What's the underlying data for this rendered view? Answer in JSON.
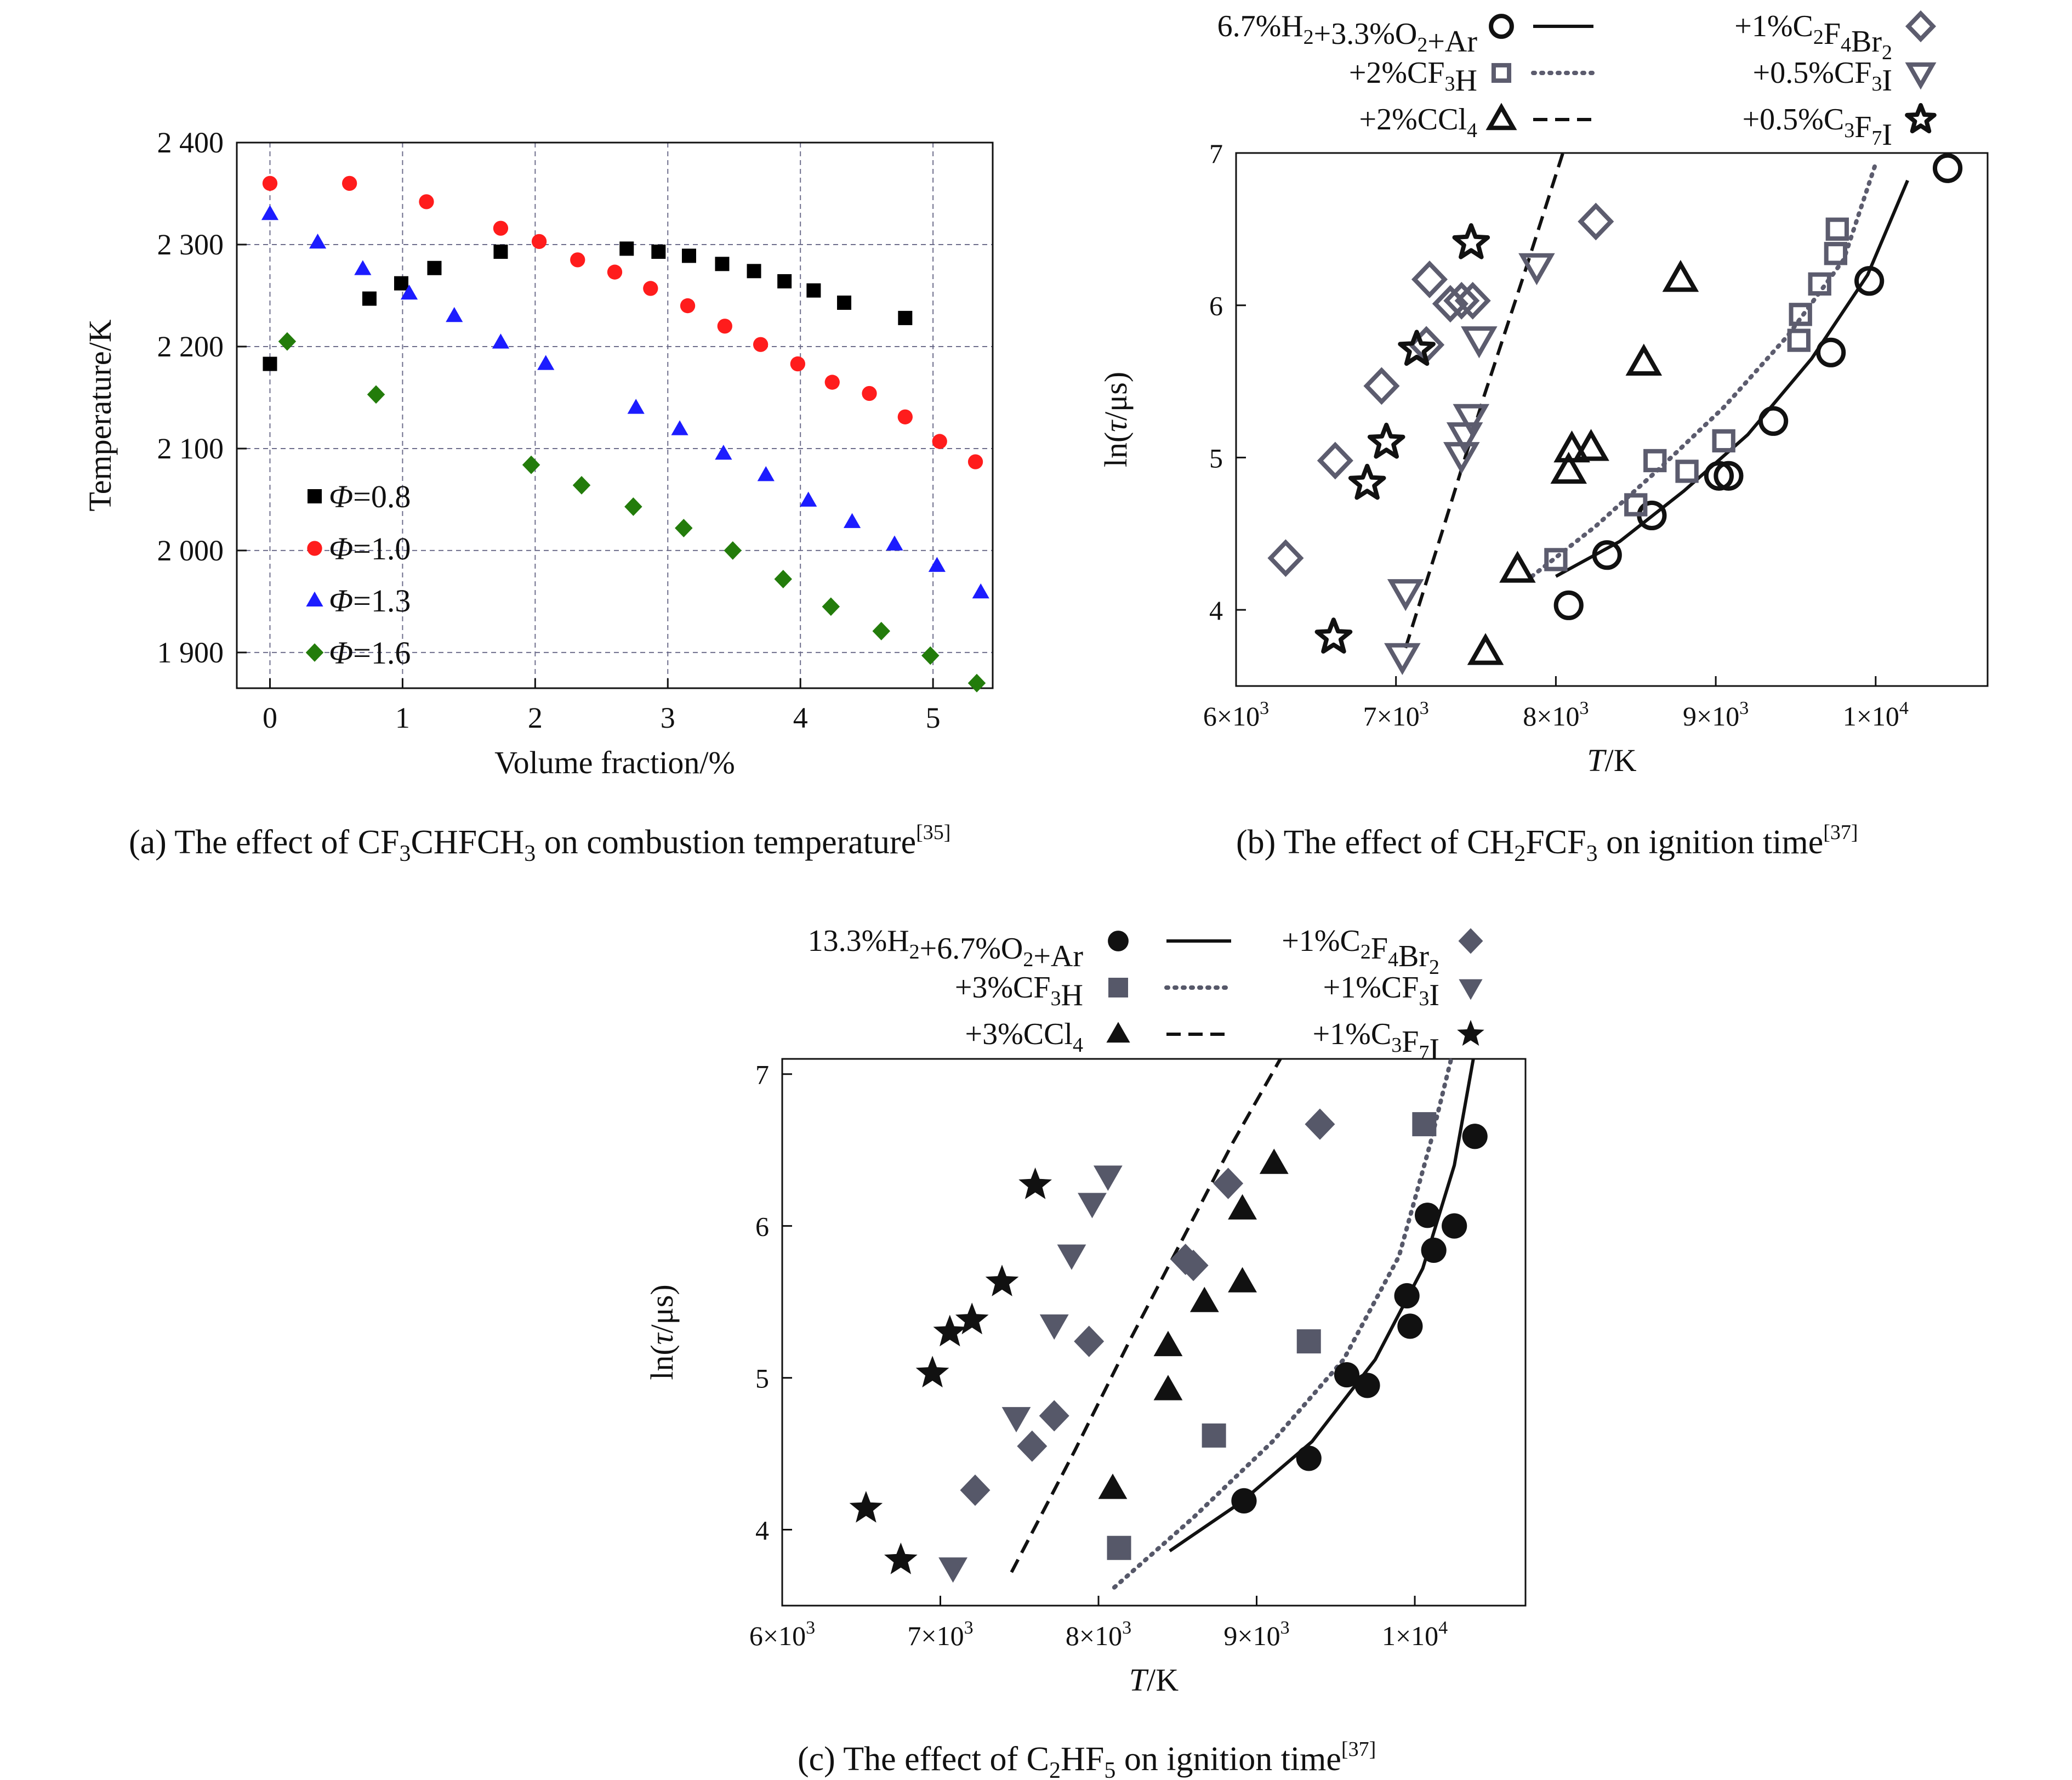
{
  "chart_data": [
    {
      "id": "a",
      "type": "scatter",
      "caption": "(a) The effect of CF₃CHFCH₃ on combustion temperature[35]",
      "xlabel": "Volume fraction/%",
      "ylabel": "Temperature/K",
      "xlim": [
        -0.25,
        5.45
      ],
      "ylim": [
        1865,
        2400
      ],
      "x_ticks": [
        {
          "v": 0,
          "label": "0"
        },
        {
          "v": 1,
          "label": "1"
        },
        {
          "v": 2,
          "label": "2"
        },
        {
          "v": 3,
          "label": "3"
        },
        {
          "v": 4,
          "label": "4"
        },
        {
          "v": 5,
          "label": "5"
        }
      ],
      "y_ticks": [
        {
          "v": 1900,
          "label": "1 900"
        },
        {
          "v": 2000,
          "label": "2 000"
        },
        {
          "v": 2100,
          "label": "2 100"
        },
        {
          "v": 2200,
          "label": "2 200"
        },
        {
          "v": 2300,
          "label": "2 300"
        },
        {
          "v": 2400,
          "label": "2 400"
        }
      ],
      "grid": true,
      "legend_position": "bottom-left",
      "series": [
        {
          "name": "Φ=0.8",
          "marker": "square",
          "color": "#000000",
          "points": [
            [
              0,
              2183
            ],
            [
              0.75,
              2247
            ],
            [
              0.99,
              2262
            ],
            [
              1.24,
              2277
            ],
            [
              1.74,
              2293
            ],
            [
              2.69,
              2296
            ],
            [
              2.93,
              2293
            ],
            [
              3.16,
              2289
            ],
            [
              3.41,
              2281
            ],
            [
              3.65,
              2274
            ],
            [
              3.88,
              2264
            ],
            [
              4.1,
              2255
            ],
            [
              4.33,
              2243
            ],
            [
              4.79,
              2228
            ]
          ]
        },
        {
          "name": "Φ=1.0",
          "marker": "circle",
          "color": "#ff1c1c",
          "points": [
            [
              0,
              2360
            ],
            [
              0.6,
              2360
            ],
            [
              1.18,
              2342
            ],
            [
              1.74,
              2316
            ],
            [
              2.03,
              2303
            ],
            [
              2.32,
              2285
            ],
            [
              2.6,
              2273
            ],
            [
              2.87,
              2257
            ],
            [
              3.15,
              2240
            ],
            [
              3.43,
              2220
            ],
            [
              3.7,
              2202
            ],
            [
              3.98,
              2183
            ],
            [
              4.24,
              2165
            ],
            [
              4.52,
              2154
            ],
            [
              4.79,
              2131
            ],
            [
              5.05,
              2107
            ],
            [
              5.32,
              2087
            ]
          ]
        },
        {
          "name": "Φ=1.3",
          "marker": "triangle",
          "color": "#1c1cff",
          "points": [
            [
              0,
              2330
            ],
            [
              0.36,
              2302
            ],
            [
              0.7,
              2276
            ],
            [
              1.05,
              2252
            ],
            [
              1.39,
              2230
            ],
            [
              1.74,
              2204
            ],
            [
              2.08,
              2183
            ],
            [
              2.76,
              2140
            ],
            [
              3.09,
              2119
            ],
            [
              3.42,
              2095
            ],
            [
              3.74,
              2074
            ],
            [
              4.06,
              2049
            ],
            [
              4.39,
              2028
            ],
            [
              4.71,
              2006
            ],
            [
              5.03,
              1985
            ],
            [
              5.36,
              1959
            ]
          ]
        },
        {
          "name": "Φ=1.6",
          "marker": "diamond",
          "color": "#237c0b",
          "points": [
            [
              0.13,
              2205
            ],
            [
              0.8,
              2153
            ],
            [
              1.97,
              2084
            ],
            [
              2.35,
              2064
            ],
            [
              2.74,
              2043
            ],
            [
              3.12,
              2022
            ],
            [
              3.49,
              2000
            ],
            [
              3.87,
              1972
            ],
            [
              4.23,
              1945
            ],
            [
              4.61,
              1921
            ],
            [
              4.98,
              1897
            ],
            [
              5.33,
              1870
            ]
          ]
        }
      ]
    },
    {
      "id": "b",
      "type": "scatter",
      "caption": "(b) The effect of CH₂FCF₃ on ignition time[37]",
      "xlabel": "T/K",
      "ylabel": "ln(τ/μs)",
      "xlim": [
        6000,
        10700
      ],
      "ylim": [
        3.5,
        7.0
      ],
      "x_ticks": [
        {
          "v": 6000,
          "label": "6×10³"
        },
        {
          "v": 7000,
          "label": "7×10³"
        },
        {
          "v": 8000,
          "label": "8×10³"
        },
        {
          "v": 9000,
          "label": "9×10³"
        },
        {
          "v": 10000,
          "label": "1×10⁴"
        }
      ],
      "y_ticks": [
        {
          "v": 4,
          "label": "4"
        },
        {
          "v": 5,
          "label": "5"
        },
        {
          "v": 6,
          "label": "6"
        },
        {
          "v": 7,
          "label": "7"
        }
      ],
      "grid": false,
      "legend_position": "above",
      "series": [
        {
          "name": "6.7%H₂+3.3%O₂+Ar",
          "marker": "circle",
          "fill": "none",
          "color": "#111111",
          "line": "solid",
          "points": [
            [
              8080,
              4.03
            ],
            [
              8320,
              4.36
            ],
            [
              8600,
              4.62
            ],
            [
              9020,
              4.88
            ],
            [
              9080,
              4.88
            ],
            [
              9360,
              5.24
            ],
            [
              9720,
              5.69
            ],
            [
              9960,
              6.16
            ],
            [
              10450,
              6.9
            ]
          ],
          "fit": [
            [
              8000,
              4.22
            ],
            [
              8400,
              4.45
            ],
            [
              8800,
              4.78
            ],
            [
              9200,
              5.15
            ],
            [
              9600,
              5.65
            ],
            [
              9950,
              6.2
            ],
            [
              10200,
              6.82
            ]
          ]
        },
        {
          "name": "+2%CF₃H",
          "marker": "square",
          "fill": "none",
          "color": "#5c5c6e",
          "line": "dotted",
          "points": [
            [
              8000,
              4.33
            ],
            [
              8500,
              4.69
            ],
            [
              8620,
              4.98
            ],
            [
              8820,
              4.91
            ],
            [
              9050,
              5.11
            ],
            [
              9520,
              5.77
            ],
            [
              9530,
              5.94
            ],
            [
              9650,
              6.14
            ],
            [
              9750,
              6.34
            ],
            [
              9760,
              6.5
            ]
          ],
          "fit": [
            [
              7850,
              4.22
            ],
            [
              8250,
              4.55
            ],
            [
              8650,
              4.93
            ],
            [
              9050,
              5.33
            ],
            [
              9450,
              5.8
            ],
            [
              9800,
              6.3
            ],
            [
              10000,
              6.93
            ]
          ]
        },
        {
          "name": "+2%CCl₄",
          "marker": "triangle",
          "fill": "none",
          "color": "#111111",
          "line": "dashed",
          "points": [
            [
              7560,
              3.72
            ],
            [
              7760,
              4.26
            ],
            [
              8080,
              4.91
            ],
            [
              8100,
              5.05
            ],
            [
              8220,
              5.06
            ],
            [
              8550,
              5.62
            ],
            [
              8780,
              6.17
            ]
          ],
          "fit": [
            [
              7060,
              3.75
            ],
            [
              7300,
              4.55
            ],
            [
              7550,
              5.4
            ],
            [
              7800,
              6.2
            ],
            [
              8050,
              7.02
            ]
          ]
        },
        {
          "name": "+1%C₂F₄Br₂",
          "marker": "diamond",
          "fill": "none",
          "color": "#5c5c6e",
          "line": "",
          "points": [
            [
              6310,
              4.34
            ],
            [
              6620,
              4.98
            ],
            [
              6910,
              5.47
            ],
            [
              7190,
              5.74
            ],
            [
              7210,
              6.17
            ],
            [
              7340,
              6.01
            ],
            [
              7410,
              6.03
            ],
            [
              7480,
              6.03
            ],
            [
              8250,
              6.55
            ]
          ]
        },
        {
          "name": "+0.5%CF₃I",
          "marker": "triangle-down",
          "fill": "none",
          "color": "#5c5c6e",
          "line": "",
          "points": [
            [
              7040,
              3.7
            ],
            [
              7060,
              4.12
            ],
            [
              7410,
              5.02
            ],
            [
              7430,
              5.15
            ],
            [
              7470,
              5.27
            ],
            [
              7520,
              5.78
            ],
            [
              7880,
              6.26
            ]
          ]
        },
        {
          "name": "+0.5%C₃F₇I",
          "marker": "star",
          "fill": "none",
          "color": "#111111",
          "line": "",
          "points": [
            [
              6610,
              3.82
            ],
            [
              6820,
              4.83
            ],
            [
              6940,
              5.1
            ],
            [
              7130,
              5.71
            ],
            [
              7470,
              6.41
            ]
          ]
        }
      ]
    },
    {
      "id": "c",
      "type": "scatter",
      "caption": "(c) The effect of C₂HF₅ on ignition time[37]",
      "xlabel": "T/K",
      "ylabel": "ln(τ/μs)",
      "xlim": [
        6000,
        10700
      ],
      "ylim": [
        3.5,
        7.1
      ],
      "x_ticks": [
        {
          "v": 6000,
          "label": "6×10³"
        },
        {
          "v": 7000,
          "label": "7×10³"
        },
        {
          "v": 8000,
          "label": "8×10³"
        },
        {
          "v": 9000,
          "label": "9×10³"
        },
        {
          "v": 10000,
          "label": "1×10⁴"
        }
      ],
      "y_ticks": [
        {
          "v": 4,
          "label": "4"
        },
        {
          "v": 5,
          "label": "5"
        },
        {
          "v": 6,
          "label": "6"
        },
        {
          "v": 7,
          "label": "7"
        }
      ],
      "grid": false,
      "legend_position": "above",
      "series": [
        {
          "name": "13.3%H₂+6.7%O₂+Ar",
          "marker": "circle",
          "fill": "solid",
          "color": "#111111",
          "line": "solid",
          "points": [
            [
              8920,
              4.19
            ],
            [
              9330,
              4.47
            ],
            [
              9570,
              5.02
            ],
            [
              9700,
              4.95
            ],
            [
              9950,
              5.54
            ],
            [
              9970,
              5.34
            ],
            [
              10080,
              6.07
            ],
            [
              10120,
              5.84
            ],
            [
              10250,
              6.0
            ],
            [
              10380,
              6.59
            ]
          ],
          "fit": [
            [
              8450,
              3.86
            ],
            [
              8900,
              4.18
            ],
            [
              9350,
              4.58
            ],
            [
              9750,
              5.12
            ],
            [
              10050,
              5.72
            ],
            [
              10250,
              6.4
            ],
            [
              10370,
              7.1
            ]
          ]
        },
        {
          "name": "+3%CF₃H",
          "marker": "square",
          "fill": "solid",
          "color": "#565869",
          "line": "dotted",
          "points": [
            [
              8130,
              3.88
            ],
            [
              8730,
              4.62
            ],
            [
              9330,
              5.24
            ],
            [
              10060,
              6.67
            ]
          ],
          "fit": [
            [
              8100,
              3.62
            ],
            [
              8600,
              4.08
            ],
            [
              9100,
              4.58
            ],
            [
              9550,
              5.12
            ],
            [
              9900,
              5.8
            ],
            [
              10100,
              6.55
            ],
            [
              10230,
              7.1
            ]
          ]
        },
        {
          "name": "+3%CCl₄",
          "marker": "triangle",
          "fill": "solid",
          "color": "#111111",
          "line": "dashed",
          "points": [
            [
              8090,
              4.27
            ],
            [
              8440,
              4.92
            ],
            [
              8440,
              5.21
            ],
            [
              8670,
              5.5
            ],
            [
              8910,
              5.63
            ],
            [
              8910,
              6.11
            ],
            [
              9110,
              6.41
            ]
          ],
          "fit": [
            [
              7450,
              3.72
            ],
            [
              7850,
              4.52
            ],
            [
              8200,
              5.25
            ],
            [
              8550,
              5.95
            ],
            [
              8850,
              6.55
            ],
            [
              9150,
              7.1
            ]
          ]
        },
        {
          "name": "+1%C₂F₄Br₂",
          "marker": "diamond",
          "fill": "solid",
          "color": "#565869",
          "line": "",
          "points": [
            [
              7220,
              4.26
            ],
            [
              7580,
              4.55
            ],
            [
              7720,
              4.75
            ],
            [
              7940,
              5.24
            ],
            [
              8550,
              5.78
            ],
            [
              8600,
              5.74
            ],
            [
              8820,
              6.28
            ],
            [
              9400,
              6.67
            ]
          ]
        },
        {
          "name": "+1%CF₃I",
          "marker": "triangle-down",
          "fill": "solid",
          "color": "#565869",
          "line": "",
          "points": [
            [
              7080,
              3.75
            ],
            [
              7480,
              4.74
            ],
            [
              7720,
              5.35
            ],
            [
              7830,
              5.81
            ],
            [
              7960,
              6.15
            ],
            [
              8060,
              6.33
            ]
          ]
        },
        {
          "name": "+1%C₃F₇I",
          "marker": "star",
          "fill": "solid",
          "color": "#111111",
          "line": "",
          "points": [
            [
              6530,
              4.14
            ],
            [
              6750,
              3.8
            ],
            [
              6950,
              5.03
            ],
            [
              7060,
              5.3
            ],
            [
              7200,
              5.38
            ],
            [
              7390,
              5.63
            ],
            [
              7600,
              6.27
            ]
          ]
        }
      ]
    }
  ]
}
